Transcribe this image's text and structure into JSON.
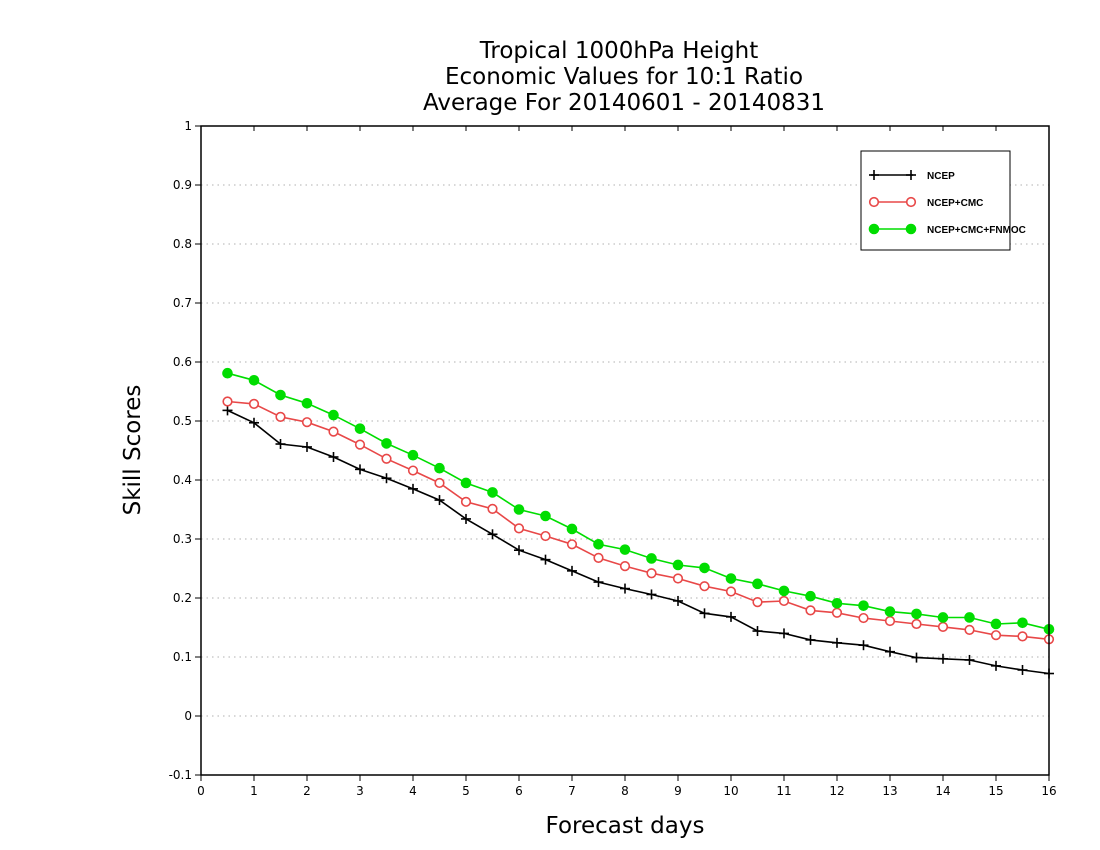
{
  "chart_data": {
    "type": "line",
    "title": [
      "Tropical 1000hPa Height",
      "Economic Values for 10:1 Ratio",
      "Average For 20140601 - 20140831"
    ],
    "xlabel": "Forecast days",
    "ylabel": "Skill Scores",
    "xlim": [
      0,
      16
    ],
    "ylim": [
      -0.1,
      1
    ],
    "xticks": [
      0,
      1,
      2,
      3,
      4,
      5,
      6,
      7,
      8,
      9,
      10,
      11,
      12,
      13,
      14,
      15,
      16
    ],
    "yticks": [
      -0.1,
      0,
      0.1,
      0.2,
      0.3,
      0.4,
      0.5,
      0.6,
      0.7,
      0.8,
      0.9,
      1
    ],
    "ytick_labels": [
      "-0.1",
      "0",
      "0.1",
      "0.2",
      "0.3",
      "0.4",
      "0.5",
      "0.6",
      "0.7",
      "0.8",
      "0.9",
      "1"
    ],
    "grid": "horizontal dotted",
    "legend_position": "top-right",
    "x": [
      0.5,
      1,
      1.5,
      2,
      2.5,
      3,
      3.5,
      4,
      4.5,
      5,
      5.5,
      6,
      6.5,
      7,
      7.5,
      8,
      8.5,
      9,
      9.5,
      10,
      10.5,
      11,
      11.5,
      12,
      12.5,
      13,
      13.5,
      14,
      14.5,
      15,
      15.5,
      16
    ],
    "series": [
      {
        "name": "NCEP",
        "color": "#000000",
        "marker": "plus",
        "values": [
          0.518,
          0.497,
          0.461,
          0.456,
          0.439,
          0.418,
          0.403,
          0.385,
          0.366,
          0.334,
          0.308,
          0.281,
          0.265,
          0.246,
          0.227,
          0.216,
          0.206,
          0.195,
          0.174,
          0.168,
          0.144,
          0.14,
          0.129,
          0.124,
          0.12,
          0.109,
          0.099,
          0.097,
          0.095,
          0.085,
          0.078,
          0.072
        ]
      },
      {
        "name": "NCEP+CMC",
        "color": "#e84848",
        "marker": "open-circle",
        "values": [
          0.533,
          0.529,
          0.507,
          0.498,
          0.482,
          0.46,
          0.436,
          0.416,
          0.395,
          0.363,
          0.351,
          0.318,
          0.305,
          0.291,
          0.268,
          0.254,
          0.242,
          0.233,
          0.22,
          0.211,
          0.193,
          0.195,
          0.179,
          0.175,
          0.166,
          0.161,
          0.156,
          0.151,
          0.146,
          0.137,
          0.135,
          0.13
        ]
      },
      {
        "name": "NCEP+CMC+FNMOC",
        "color": "#00dd00",
        "marker": "filled-circle",
        "values": [
          0.581,
          0.569,
          0.544,
          0.53,
          0.51,
          0.487,
          0.462,
          0.442,
          0.42,
          0.395,
          0.379,
          0.35,
          0.339,
          0.317,
          0.291,
          0.282,
          0.267,
          0.256,
          0.251,
          0.233,
          0.224,
          0.212,
          0.203,
          0.191,
          0.187,
          0.177,
          0.173,
          0.167,
          0.167,
          0.156,
          0.158,
          0.147
        ]
      }
    ]
  }
}
